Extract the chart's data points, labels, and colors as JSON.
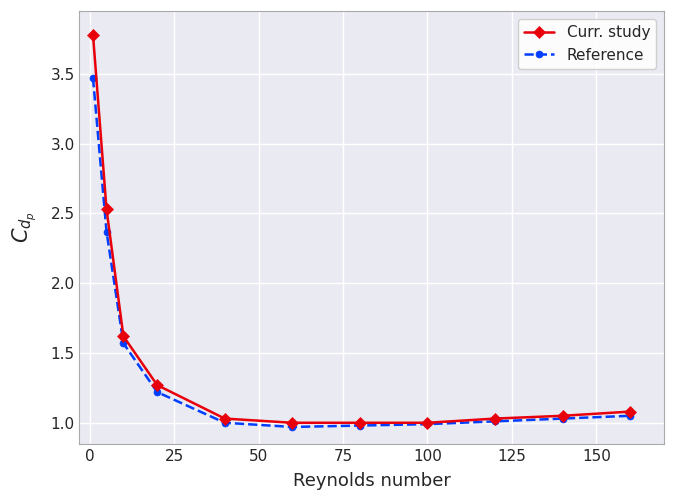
{
  "curr_study_x": [
    1,
    5,
    10,
    20,
    40,
    60,
    80,
    100,
    120,
    140,
    160
  ],
  "curr_study_y": [
    3.78,
    2.53,
    1.62,
    1.27,
    1.03,
    1.0,
    1.0,
    1.0,
    1.03,
    1.05,
    1.08
  ],
  "reference_x": [
    1,
    5,
    10,
    20,
    40,
    60,
    80,
    100,
    120,
    140,
    160
  ],
  "reference_y": [
    3.47,
    2.37,
    1.57,
    1.22,
    1.0,
    0.97,
    0.98,
    0.99,
    1.01,
    1.03,
    1.05
  ],
  "curr_color": "#e8000b",
  "ref_color": "#023eff",
  "curr_label": "Curr. study",
  "ref_label": "Reference",
  "xlabel": "Reynolds number",
  "ylabel": "$C_{d_p}$",
  "xlim": [
    -3,
    170
  ],
  "ylim": [
    0.85,
    3.95
  ],
  "xticks": [
    0,
    25,
    50,
    75,
    100,
    125,
    150
  ],
  "yticks": [
    1.0,
    1.5,
    2.0,
    2.5,
    3.0,
    3.5
  ],
  "bg_color": "#eaeaf2",
  "grid_color": "#ffffff",
  "legend_fontsize": 11,
  "label_fontsize": 13,
  "tick_fontsize": 11,
  "figwidth": 6.75,
  "figheight": 5.01,
  "dpi": 100
}
